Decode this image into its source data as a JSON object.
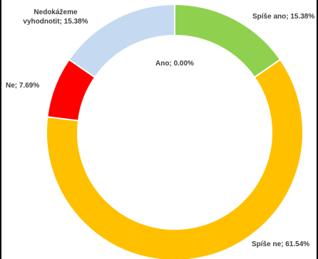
{
  "chart_data": {
    "type": "pie",
    "variant": "doughnut",
    "title": "",
    "categories": [
      "Ano",
      "Spíše ano",
      "Spíše ne",
      "Ne",
      "Nedokážeme vyhodnotit"
    ],
    "values": [
      0.0,
      15.38,
      61.54,
      7.69,
      15.38
    ],
    "unit": "%",
    "colors": [
      "#8fd14f",
      "#8fd14f",
      "#ffc000",
      "#ff0000",
      "#c5d9f1"
    ],
    "data_labels": [
      [
        "Ano; 0.00%"
      ],
      [
        "Spíše ano; 15.38%"
      ],
      [
        "Spíše ne; 61.54%"
      ],
      [
        "Ne; 7.69%"
      ],
      [
        "Nedokážeme",
        "vyhodnotit; 15.38%"
      ]
    ],
    "legend": "none",
    "grid": false
  }
}
